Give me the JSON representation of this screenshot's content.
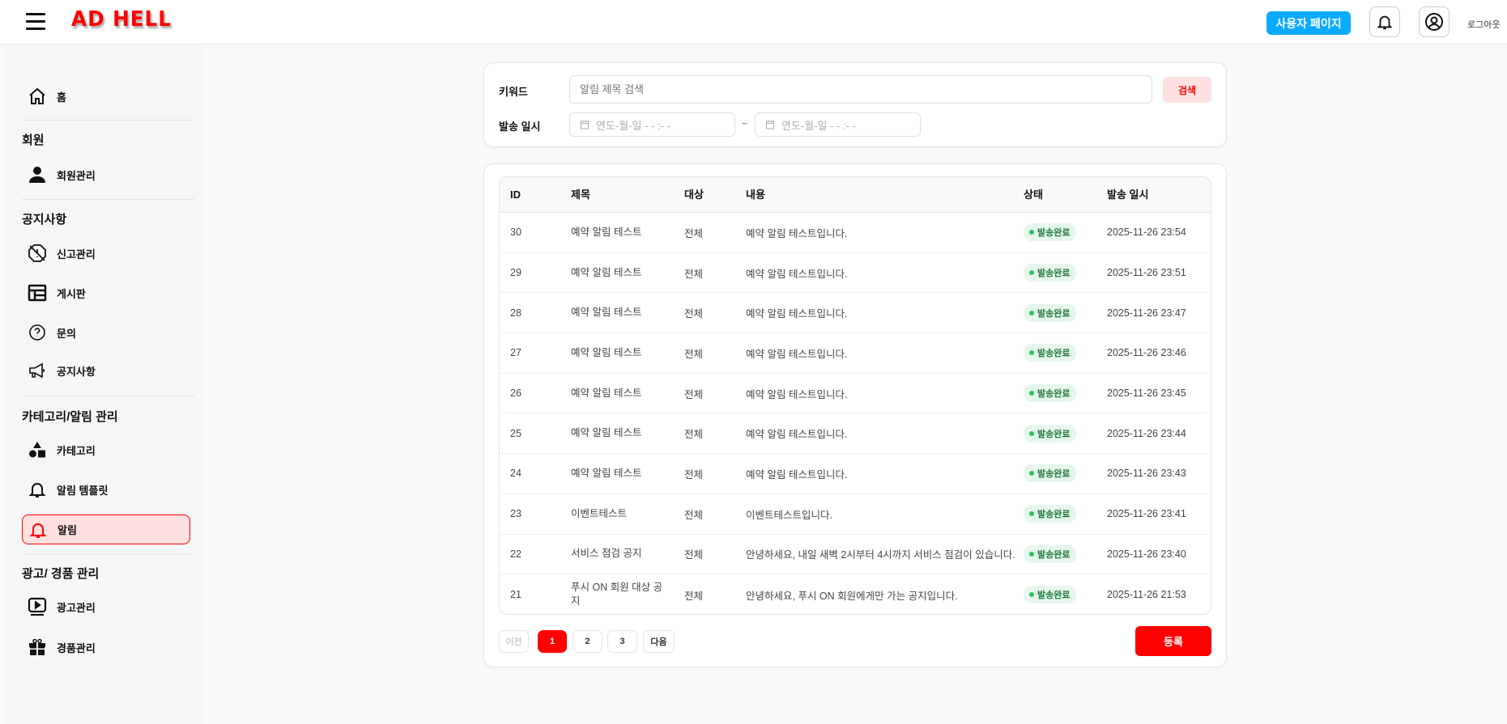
{
  "header": {
    "logo": "AD HELL",
    "user_page_label": "사용자 페이지",
    "logout_label": "로그아웃"
  },
  "sidebar": {
    "home": "홈",
    "sections": [
      {
        "title": "회원",
        "items": [
          "회원관리"
        ]
      },
      {
        "title": "공지사항",
        "items": [
          "신고관리",
          "게시판",
          "문의",
          "공지사항"
        ]
      },
      {
        "title": "카테고리/알림 관리",
        "items": [
          "카테고리",
          "알림 템플릿",
          "알림"
        ]
      },
      {
        "title": "광고/ 경품 관리",
        "items": [
          "광고관리",
          "경품관리"
        ]
      }
    ],
    "active_item": "알림"
  },
  "filter": {
    "keyword_label": "키워드",
    "keyword_placeholder": "알림 제목 검색",
    "search_label": "검색",
    "date_label": "발송 일시",
    "date_placeholder": "연도-월-일 - - :- -",
    "date_separator": "~"
  },
  "table": {
    "columns": [
      "ID",
      "제목",
      "대상",
      "내용",
      "상태",
      "발송 일시"
    ],
    "rows": [
      [
        "30",
        "예약 알림 테스트",
        "전체",
        "예약 알림 테스트입니다.",
        "발송완료",
        "2025-11-26 23:54"
      ],
      [
        "29",
        "예약 알림 테스트",
        "전체",
        "예약 알림 테스트입니다.",
        "발송완료",
        "2025-11-26 23:51"
      ],
      [
        "28",
        "예약 알림 테스트",
        "전체",
        "예약 알림 테스트입니다.",
        "발송완료",
        "2025-11-26 23:47"
      ],
      [
        "27",
        "예약 알림 테스트",
        "전체",
        "예약 알림 테스트입니다.",
        "발송완료",
        "2025-11-26 23:46"
      ],
      [
        "26",
        "예약 알림 테스트",
        "전체",
        "예약 알림 테스트입니다.",
        "발송완료",
        "2025-11-26 23:45"
      ],
      [
        "25",
        "예약 알림 테스트",
        "전체",
        "예약 알림 테스트입니다.",
        "발송완료",
        "2025-11-26 23:44"
      ],
      [
        "24",
        "예약 알림 테스트",
        "전체",
        "예약 알림 테스트입니다.",
        "발송완료",
        "2025-11-26 23:43"
      ],
      [
        "23",
        "이벤트테스트",
        "전체",
        "이벤트테스트입니다.",
        "발송완료",
        "2025-11-26 23:41"
      ],
      [
        "22",
        "서비스 점검 공지",
        "전체",
        "안녕하세요, 내일 새벽 2시부터 4시까지 서비스 점검이 있습니다.",
        "발송완료",
        "2025-11-26 23:40"
      ],
      [
        "21",
        "푸시 ON 회원 대상 공지",
        "전체",
        "안녕하세요, 푸시 ON 회원에게만 가는 공지입니다.",
        "발송완료",
        "2025-11-26 21:53"
      ]
    ]
  },
  "pagination": {
    "prev": "이전",
    "pages": [
      "1",
      "2",
      "3"
    ],
    "current": "1",
    "next": "다음"
  },
  "register_label": "등록",
  "colors": {
    "brand": "#ff0000",
    "accent_blue": "#0aaaff",
    "status_green": "#22c55e"
  }
}
